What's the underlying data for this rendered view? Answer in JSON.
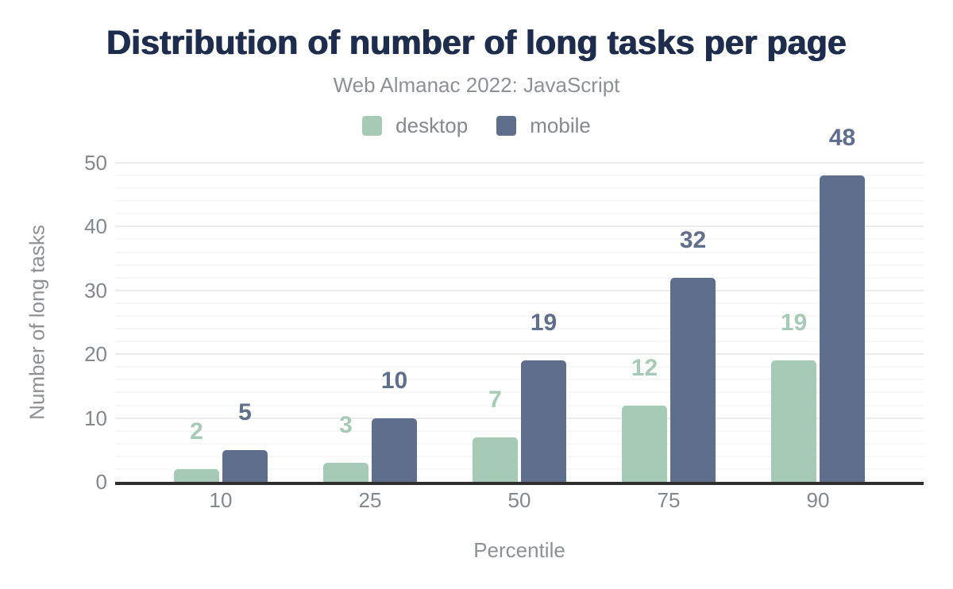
{
  "header": {
    "title": "Distribution of number of long tasks per page",
    "subtitle": "Web Almanac 2022: JavaScript"
  },
  "chart_data": {
    "type": "bar",
    "title": "Distribution of number of long tasks per page",
    "subtitle": "Web Almanac 2022: JavaScript",
    "categories": [
      "10",
      "25",
      "50",
      "75",
      "90"
    ],
    "series": [
      {
        "name": "desktop",
        "color": "#a7cab7",
        "values": [
          2,
          3,
          7,
          12,
          19
        ]
      },
      {
        "name": "mobile",
        "color": "#5f6e8b",
        "values": [
          5,
          10,
          19,
          32,
          48
        ]
      }
    ],
    "xlabel": "Percentile",
    "ylabel": "Number of long tasks",
    "ylim": [
      0,
      50
    ],
    "yticks": [
      0,
      10,
      20,
      30,
      40,
      50
    ],
    "grid": {
      "minor_step": 2,
      "major_step": 10,
      "on": true
    },
    "legend_position": "top",
    "data_labels": true
  },
  "colors": {
    "title": "#1e2d4d",
    "subtitle": "#8d9196",
    "tick_text": "#83888e",
    "axis_line": "#2f2f2f",
    "grid_major": "#ececec",
    "grid_minor": "#f7f7f7",
    "desktop": "#a7cab7",
    "mobile": "#5f6e8b",
    "background": "#ffffff"
  }
}
